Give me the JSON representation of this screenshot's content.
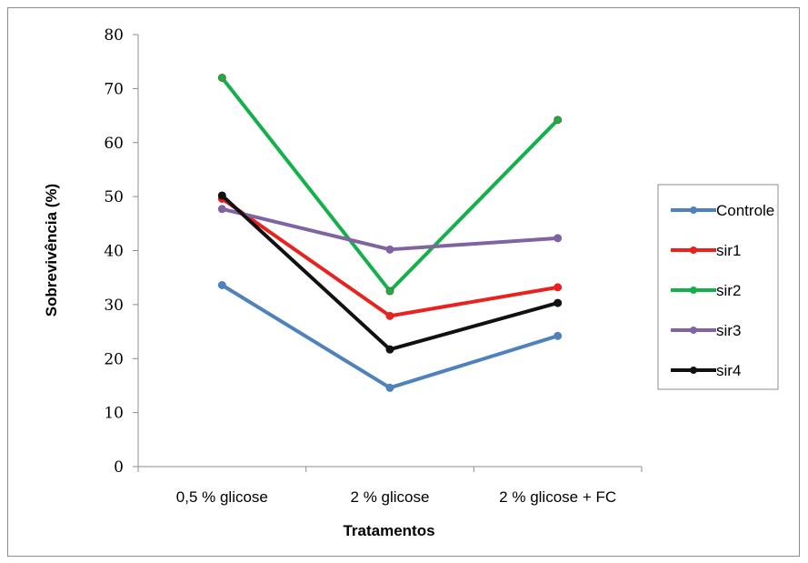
{
  "chart_data": {
    "type": "line",
    "categories": [
      "0,5 % glicose",
      "2 % glicose",
      "2 % glicose + FC"
    ],
    "xlabel": "Tratamentos",
    "ylabel": "Sobrevivência (%)",
    "ylim": [
      0,
      80
    ],
    "yticks": [
      0,
      10,
      20,
      30,
      40,
      50,
      60,
      70,
      80
    ],
    "grid": false,
    "legend_position": "right",
    "series": [
      {
        "name": "Controle",
        "color": "#4F81BD",
        "values": [
          33.6,
          14.6,
          24.2
        ]
      },
      {
        "name": "sir1",
        "color": "#E8231F",
        "values": [
          49.6,
          27.9,
          33.2
        ]
      },
      {
        "name": "sir2",
        "color": "#14B04C",
        "values": [
          72.0,
          32.5,
          64.2
        ]
      },
      {
        "name": "sir3",
        "color": "#8064A2",
        "values": [
          47.7,
          40.2,
          42.3
        ]
      },
      {
        "name": "sir4",
        "color": "#111111",
        "values": [
          50.2,
          21.7,
          30.3
        ]
      }
    ]
  }
}
